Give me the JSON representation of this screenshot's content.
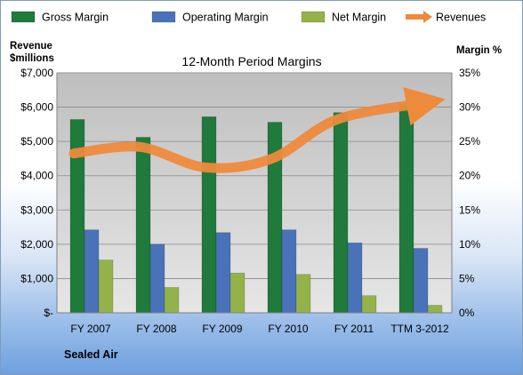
{
  "chart_data": {
    "type": "bar",
    "title": "12-Month Period Margins",
    "company": "Sealed Air",
    "categories": [
      "FY 2007",
      "FY 2008",
      "FY 2009",
      "FY 2010",
      "FY 2011",
      "TTM 3-2012"
    ],
    "series": [
      {
        "name": "Gross Margin",
        "type": "bar",
        "axis": "right",
        "color": "#1f7a3c",
        "values": [
          28.2,
          25.6,
          28.6,
          27.8,
          29.2,
          30.5
        ]
      },
      {
        "name": "Operating Margin",
        "type": "bar",
        "axis": "right",
        "color": "#4a72b8",
        "values": [
          12.1,
          10.0,
          11.7,
          12.1,
          10.2,
          9.4
        ]
      },
      {
        "name": "Net Margin",
        "type": "bar",
        "axis": "right",
        "color": "#93b34a",
        "values": [
          7.7,
          3.7,
          5.8,
          5.6,
          2.5,
          1.1
        ]
      },
      {
        "name": "Revenues",
        "type": "line",
        "axis": "left",
        "color": "#ee8a3c",
        "values": [
          4650,
          4840,
          4240,
          4490,
          5640,
          6130
        ]
      }
    ],
    "ylabel_left": "Revenue\n$millions",
    "ylabel_right": "Margin %",
    "y_left": {
      "min": 0,
      "max": 7000,
      "ticks": [
        "$-",
        "$1,000",
        "$2,000",
        "$3,000",
        "$4,000",
        "$5,000",
        "$6,000",
        "$7,000"
      ]
    },
    "y_right": {
      "min": 0,
      "max": 35,
      "ticks": [
        "0%",
        "5%",
        "10%",
        "15%",
        "20%",
        "25%",
        "30%",
        "35%"
      ]
    },
    "legend_position": "top",
    "grid": true
  }
}
